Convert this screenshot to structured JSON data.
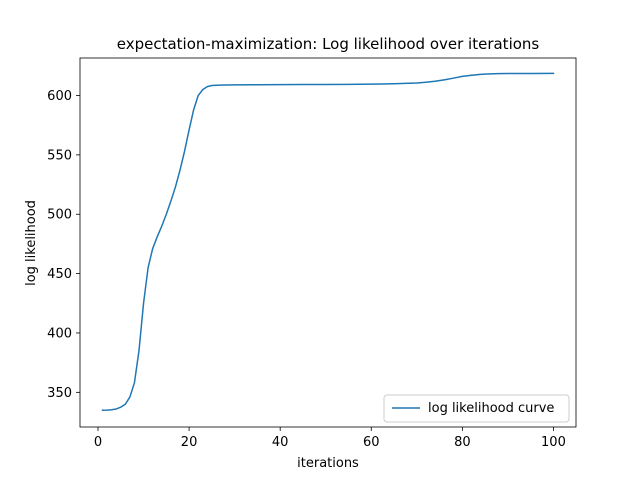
{
  "chart_data": {
    "type": "line",
    "title": "expectation-maximization: Log likelihood over iterations",
    "xlabel": "iterations",
    "ylabel": "log likelihood",
    "xlim": [
      -3.95,
      104.95
    ],
    "ylim": [
      320.8,
      631.6
    ],
    "x_ticks": [
      0,
      20,
      40,
      60,
      80,
      100
    ],
    "y_ticks": [
      350,
      400,
      450,
      500,
      550,
      600
    ],
    "grid": false,
    "legend": {
      "position": "lower right"
    },
    "series": [
      {
        "name": "log likelihood curve",
        "color": "#1f77b4",
        "x": [
          1,
          2,
          3,
          4,
          5,
          6,
          7,
          8,
          9,
          10,
          11,
          12,
          13,
          14,
          15,
          16,
          17,
          18,
          19,
          20,
          21,
          22,
          23,
          24,
          25,
          26,
          28,
          30,
          35,
          40,
          45,
          50,
          55,
          60,
          65,
          70,
          72,
          74,
          76,
          78,
          80,
          82,
          84,
          86,
          88,
          90,
          95,
          100
        ],
        "y": [
          334.9,
          335.0,
          335.3,
          336.0,
          337.5,
          340.0,
          346.0,
          358.0,
          385.0,
          425.0,
          455.0,
          471.0,
          481.0,
          490.0,
          500.0,
          511.0,
          523.0,
          537.0,
          553.0,
          571.0,
          588.0,
          600.0,
          605.0,
          607.5,
          608.4,
          608.7,
          608.9,
          609.0,
          609.1,
          609.2,
          609.25,
          609.3,
          609.4,
          609.6,
          609.9,
          610.5,
          611.2,
          612.0,
          613.2,
          614.6,
          616.1,
          617.1,
          617.8,
          618.2,
          618.4,
          618.5,
          618.55,
          618.6
        ]
      }
    ]
  }
}
